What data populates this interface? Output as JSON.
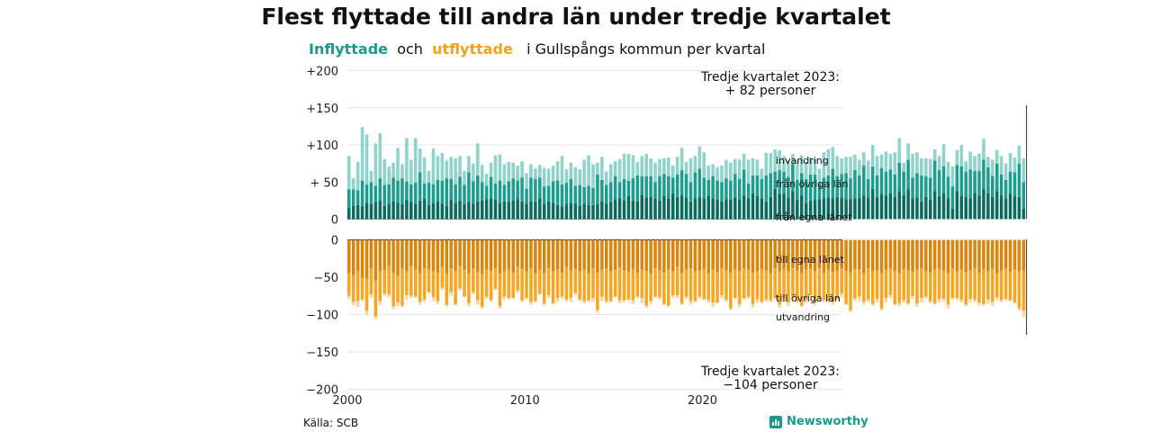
{
  "title": "Flest flyttade till andra län under tredje kvartalet",
  "subtitle": {
    "in": "Inflyttade",
    "and": "och",
    "out": "utflyttade",
    "rest": "i Gullspångs  kommun  per  kvartal"
  },
  "source": "Källa: SCB",
  "brand": "Newsworthy",
  "colors": {
    "in_local": "#0b6b5e",
    "in_other": "#1d9d8e",
    "in_abroad": "#8fd3cb",
    "out_local": "#d9850e",
    "out_other": "#f5a623",
    "out_abroad": "#f7d9a6",
    "grid": "#e6e6e6"
  },
  "chart_data": {
    "type": "bar",
    "stacked": true,
    "x_start": 2000,
    "periods_per_year": 4,
    "xticks": [
      2000,
      2010,
      2020
    ],
    "xtick_labels": [
      "2000",
      "2010",
      "2020"
    ],
    "ylim": [
      -200,
      200
    ],
    "yticks": [
      200,
      150,
      100,
      50,
      0,
      -50,
      -100,
      -150,
      -200
    ],
    "ytick_labels": [
      "+200",
      "+150",
      "+100",
      "+ 50",
      "0",
      "−50",
      "−100",
      "−150",
      "−200"
    ],
    "grid": true,
    "series_in": [
      {
        "name": "från egna länet",
        "values": [
          15,
          18,
          19,
          17,
          22,
          20,
          23,
          25,
          18,
          21,
          24,
          22,
          20,
          26,
          23,
          21,
          25,
          28,
          19,
          22,
          24,
          21,
          18,
          26,
          22,
          25,
          20,
          23,
          21,
          24,
          25,
          27,
          28,
          26,
          22,
          24,
          23,
          25,
          27,
          24,
          21,
          24,
          23,
          28,
          20,
          24,
          22,
          19,
          17,
          20,
          22,
          21,
          18,
          21,
          19,
          19,
          20,
          24,
          21,
          23,
          27,
          28,
          25,
          31,
          25,
          24,
          33,
          29,
          30,
          28,
          25,
          31,
          28,
          35,
          30,
          32,
          29,
          24,
          28,
          30,
          28,
          31,
          28,
          27,
          24,
          27,
          26,
          29,
          26,
          32,
          28,
          35,
          31,
          28,
          24,
          30,
          41,
          34,
          34,
          29,
          38,
          26,
          32,
          22,
          25,
          26,
          27,
          28,
          29,
          28,
          30,
          29,
          27,
          27,
          28,
          29,
          32,
          29,
          41,
          30,
          34,
          32,
          35,
          30,
          38,
          32,
          40,
          28,
          29,
          24,
          30,
          26,
          38,
          31,
          35,
          28,
          14,
          38,
          31,
          30,
          28,
          35,
          32,
          40,
          35,
          30,
          38,
          32,
          28,
          34,
          31,
          30,
          14
        ]
      },
      {
        "name": "från övriga län",
        "values": [
          25,
          22,
          20,
          35,
          25,
          30,
          22,
          30,
          28,
          26,
          32,
          30,
          35,
          25,
          24,
          28,
          38,
          20,
          30,
          25,
          29,
          31,
          37,
          28,
          25,
          32,
          26,
          40,
          30,
          35,
          25,
          18,
          29,
          22,
          30,
          22,
          28,
          30,
          25,
          32,
          20,
          32,
          31,
          28,
          24,
          21,
          29,
          33,
          30,
          29,
          32,
          24,
          28,
          22,
          26,
          23,
          40,
          29,
          25,
          27,
          31,
          22,
          29,
          21,
          30,
          35,
          25,
          29,
          28,
          22,
          33,
          30,
          30,
          21,
          30,
          34,
          32,
          26,
          35,
          38,
          28,
          22,
          30,
          25,
          26,
          28,
          26,
          32,
          28,
          35,
          20,
          24,
          28,
          26,
          35,
          32,
          23,
          32,
          30,
          28,
          36,
          27,
          30,
          32,
          35,
          34,
          22,
          28,
          30,
          40,
          28,
          32,
          35,
          28,
          38,
          30,
          40,
          25,
          30,
          29,
          35,
          32,
          32,
          30,
          38,
          32,
          40,
          28,
          33,
          35,
          28,
          30,
          41,
          35,
          36,
          29,
          30,
          35,
          40,
          34,
          39,
          30,
          33,
          40,
          35,
          28,
          37,
          28,
          25,
          30,
          32,
          45,
          36
        ]
      },
      {
        "name": "invandring",
        "values": [
          45,
          15,
          38,
          72,
          67,
          15,
          57,
          61,
          35,
          24,
          20,
          44,
          19,
          58,
          33,
          60,
          32,
          35,
          16,
          48,
          32,
          37,
          24,
          30,
          35,
          28,
          19,
          22,
          24,
          43,
          23,
          16,
          19,
          38,
          35,
          28,
          26,
          21,
          20,
          22,
          21,
          18,
          14,
          17,
          25,
          23,
          21,
          26,
          38,
          18,
          22,
          25,
          21,
          37,
          41,
          32,
          16,
          31,
          18,
          24,
          20,
          31,
          34,
          36,
          31,
          18,
          27,
          30,
          24,
          26,
          23,
          21,
          25,
          16,
          24,
          30,
          16,
          32,
          22,
          30,
          34,
          19,
          16,
          18,
          22,
          25,
          24,
          20,
          26,
          21,
          32,
          23,
          21,
          14,
          30,
          27,
          30,
          27,
          21,
          22,
          14,
          26,
          24,
          23,
          23,
          21,
          19,
          34,
          35,
          29,
          27,
          21,
          22,
          29,
          21,
          21,
          18,
          25,
          29,
          26,
          18,
          27,
          21,
          30,
          33,
          12,
          22,
          32,
          28,
          23,
          24,
          25,
          15,
          19,
          30,
          20,
          27,
          20,
          29,
          14,
          24,
          20,
          23,
          28,
          14,
          22,
          18,
          25,
          22,
          25,
          20,
          24,
          32
        ]
      }
    ],
    "series_out": [
      {
        "name": "till egna länet",
        "values": [
          45,
          48,
          42,
          50,
          52,
          38,
          55,
          42,
          40,
          35,
          44,
          48,
          38,
          42,
          35,
          40,
          45,
          38,
          40,
          42,
          44,
          36,
          45,
          38,
          42,
          35,
          40,
          45,
          38,
          43,
          46,
          40,
          41,
          38,
          45,
          42,
          40,
          44,
          36,
          39,
          42,
          38,
          44,
          40,
          45,
          38,
          42,
          40,
          44,
          36,
          41,
          39,
          42,
          40,
          45,
          38,
          44,
          40,
          38,
          42,
          40,
          37,
          41,
          43,
          39,
          44,
          40,
          42,
          45,
          38,
          41,
          44,
          40,
          42,
          36,
          44,
          40,
          38,
          42,
          41,
          39,
          45,
          40,
          43,
          38,
          41,
          44,
          40,
          42,
          38,
          40,
          44,
          42,
          39,
          41,
          45,
          38,
          43,
          40,
          42,
          38,
          41,
          44,
          40,
          39,
          42,
          38,
          45,
          40,
          43,
          41,
          38,
          42,
          44,
          39,
          40,
          45,
          38,
          42,
          41,
          44,
          40,
          38,
          42,
          45,
          39,
          41,
          43,
          40,
          38,
          42,
          44,
          40,
          39,
          41,
          45,
          38,
          42,
          40,
          43,
          41,
          38,
          44,
          40,
          42,
          39,
          45,
          41,
          38,
          43,
          40,
          42,
          41
        ]
      },
      {
        "name": "till övriga län",
        "values": [
          30,
          35,
          40,
          30,
          43,
          35,
          48,
          40,
          32,
          38,
          45,
          36,
          50,
          32,
          40,
          36,
          38,
          42,
          30,
          35,
          38,
          28,
          42,
          32,
          44,
          30,
          36,
          40,
          32,
          38,
          44,
          36,
          40,
          28,
          44,
          34,
          38,
          34,
          32,
          42,
          36,
          45,
          38,
          32,
          40,
          36,
          43,
          38,
          32,
          44,
          37,
          32,
          38,
          42,
          36,
          40,
          50,
          36,
          44,
          40,
          36,
          44,
          40,
          37,
          42,
          32,
          38,
          46,
          37,
          38,
          36,
          42,
          48,
          32,
          38,
          42,
          36,
          44,
          40,
          35,
          40,
          36,
          44,
          41,
          36,
          39,
          48,
          38,
          44,
          40,
          36,
          42,
          38,
          44,
          39,
          36,
          40,
          44,
          38,
          42,
          38,
          41,
          44,
          40,
          35,
          42,
          40,
          36,
          41,
          40,
          38,
          34,
          44,
          50,
          40,
          36,
          38,
          42,
          44,
          38,
          48,
          38,
          36,
          44,
          40,
          42,
          44,
          32,
          45,
          40,
          34,
          38,
          45,
          40,
          38,
          42,
          40,
          36,
          40,
          44,
          38,
          42,
          40,
          46,
          38,
          44,
          32,
          40,
          41,
          38,
          44,
          50,
          54
        ]
      },
      {
        "name": "utvandring",
        "values": [
          4,
          5,
          8,
          2,
          6,
          5,
          3,
          6,
          3,
          4,
          4,
          5,
          2,
          6,
          3,
          2,
          4,
          3,
          1,
          5,
          4,
          3,
          2,
          5,
          2,
          3,
          1,
          4,
          3,
          6,
          2,
          3,
          2,
          1,
          3,
          4,
          2,
          1,
          3,
          3,
          2,
          4,
          2,
          2,
          3,
          4,
          1,
          5,
          3,
          2,
          5,
          3,
          2,
          3,
          2,
          5,
          4,
          6,
          3,
          2,
          1,
          4,
          3,
          1,
          5,
          2,
          7,
          3,
          4,
          2,
          3,
          2,
          2,
          3,
          4,
          1,
          3,
          5,
          2,
          3,
          2,
          3,
          6,
          2,
          4,
          3,
          2,
          1,
          4,
          2,
          3,
          5,
          4,
          2,
          3,
          3,
          2,
          4,
          6,
          5,
          5,
          3,
          2,
          4,
          3,
          4,
          2,
          2,
          3,
          4,
          2,
          5,
          1,
          3,
          2,
          6,
          4,
          3,
          2,
          5,
          3,
          6,
          4,
          2,
          4,
          3,
          2,
          4,
          5,
          6,
          3,
          3,
          2,
          5,
          4,
          5,
          2,
          3,
          4,
          2,
          5,
          3,
          4,
          2,
          6,
          5,
          4,
          3,
          2,
          1,
          2,
          3,
          9
        ]
      }
    ],
    "labels_in": [
      "invandring",
      "från övriga län",
      "från egna länet"
    ],
    "labels_out": [
      "till egna länet",
      "till övriga län",
      "utvandring"
    ],
    "annotation_top": [
      "Tredje kvartalet 2023:",
      "+ 82 personer"
    ],
    "annotation_bottom": [
      "Tredje kvartalet 2023:",
      "−104 personer"
    ]
  }
}
